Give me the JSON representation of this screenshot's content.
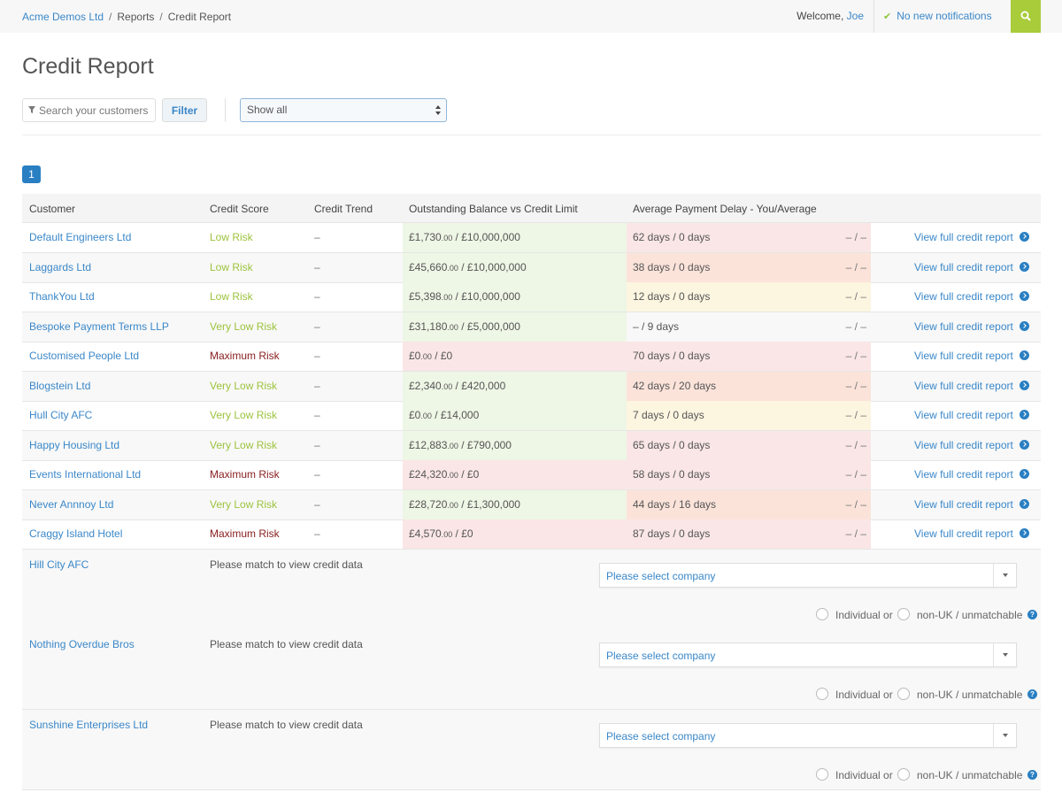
{
  "topbar": {
    "breadcrumb": [
      "Acme Demos Ltd",
      "Reports",
      "Credit Report"
    ],
    "welcome_prefix": "Welcome,",
    "user": "Joe",
    "notifications": "No new notifications"
  },
  "page": {
    "title": "Credit Report",
    "search_placeholder": "Search your customers",
    "filter_label": "Filter",
    "show_value": "Show all",
    "page_number": "1"
  },
  "columns": [
    "Customer",
    "Credit Score",
    "Credit Trend",
    "Outstanding Balance vs Credit Limit",
    "Average Payment Delay - You/Average"
  ],
  "rows": [
    {
      "name": "Default Engineers Ltd",
      "score": "Low Risk",
      "trend": "–",
      "bal_main": "£1,730",
      "bal_pence": ".00",
      "bal_limit": " / £10,000,000",
      "delay": "62 days / 0 days",
      "delay2": "– / –",
      "link": "View full credit report"
    },
    {
      "name": "Laggards Ltd",
      "score": "Low Risk",
      "trend": "–",
      "bal_main": "£45,660",
      "bal_pence": ".00",
      "bal_limit": " / £10,000,000",
      "delay": "38 days / 0 days",
      "delay2": "– / –",
      "link": "View full credit report"
    },
    {
      "name": "ThankYou Ltd",
      "score": "Low Risk",
      "trend": "–",
      "bal_main": "£5,398",
      "bal_pence": ".00",
      "bal_limit": " / £10,000,000",
      "delay": "12 days / 0 days",
      "delay2": "– / –",
      "link": "View full credit report"
    },
    {
      "name": "Bespoke Payment Terms LLP",
      "score": "Very Low Risk",
      "trend": "–",
      "bal_main": "£31,180",
      "bal_pence": ".00",
      "bal_limit": " / £5,000,000",
      "delay": "– / 9 days",
      "delay2": "– / –",
      "link": "View full credit report"
    },
    {
      "name": "Customised People Ltd",
      "score": "Maximum Risk",
      "trend": "–",
      "bal_main": "£0",
      "bal_pence": ".00",
      "bal_limit": " / £0",
      "delay": "70 days / 0 days",
      "delay2": "– / –",
      "link": "View full credit report"
    },
    {
      "name": "Blogstein Ltd",
      "score": "Very Low Risk",
      "trend": "–",
      "bal_main": "£2,340",
      "bal_pence": ".00",
      "bal_limit": " / £420,000",
      "delay": "42 days / 20 days",
      "delay2": "– / –",
      "link": "View full credit report"
    },
    {
      "name": "Hull City AFC",
      "score": "Very Low Risk",
      "trend": "–",
      "bal_main": "£0",
      "bal_pence": ".00",
      "bal_limit": " / £14,000",
      "delay": "7 days / 0 days",
      "delay2": "– / –",
      "link": "View full credit report"
    },
    {
      "name": "Happy Housing Ltd",
      "score": "Very Low Risk",
      "trend": "–",
      "bal_main": "£12,883",
      "bal_pence": ".00",
      "bal_limit": " / £790,000",
      "delay": "65 days / 0 days",
      "delay2": "– / –",
      "link": "View full credit report"
    },
    {
      "name": "Events International Ltd",
      "score": "Maximum Risk",
      "trend": "–",
      "bal_main": "£24,320",
      "bal_pence": ".00",
      "bal_limit": " / £0",
      "delay": "58 days / 0 days",
      "delay2": "– / –",
      "link": "View full credit report"
    },
    {
      "name": "Never Annnoy Ltd",
      "score": "Very Low Risk",
      "trend": "–",
      "bal_main": "£28,720",
      "bal_pence": ".00",
      "bal_limit": " / £1,300,000",
      "delay": "44 days / 16 days",
      "delay2": "– / –",
      "link": "View full credit report"
    },
    {
      "name": "Craggy Island Hotel",
      "score": "Maximum Risk",
      "trend": "–",
      "bal_main": "£4,570",
      "bal_pence": ".00",
      "bal_limit": " / £0",
      "delay": "87 days / 0 days",
      "delay2": "– / –",
      "link": "View full credit report"
    }
  ],
  "unmatched": [
    {
      "name": "Hill City AFC",
      "message": "Please match to view credit data",
      "select_placeholder": "Please select company",
      "radio1": "Individual or",
      "radio2": "non-UK / unmatchable"
    },
    {
      "name": "Nothing Overdue Bros",
      "message": "Please match to view credit data",
      "select_placeholder": "Please select company",
      "radio1": "Individual or",
      "radio2": "non-UK / unmatchable"
    },
    {
      "name": "Sunshine Enterprises Ltd",
      "message": "Please match to view credit data",
      "select_placeholder": "Please select company",
      "radio1": "Individual or",
      "radio2": "non-UK / unmatchable"
    }
  ],
  "colors": {
    "accent": "#3a87c8",
    "search_button": "#a8cc3a",
    "low_risk": "#9cc33c",
    "max_risk": "#8a2020"
  }
}
